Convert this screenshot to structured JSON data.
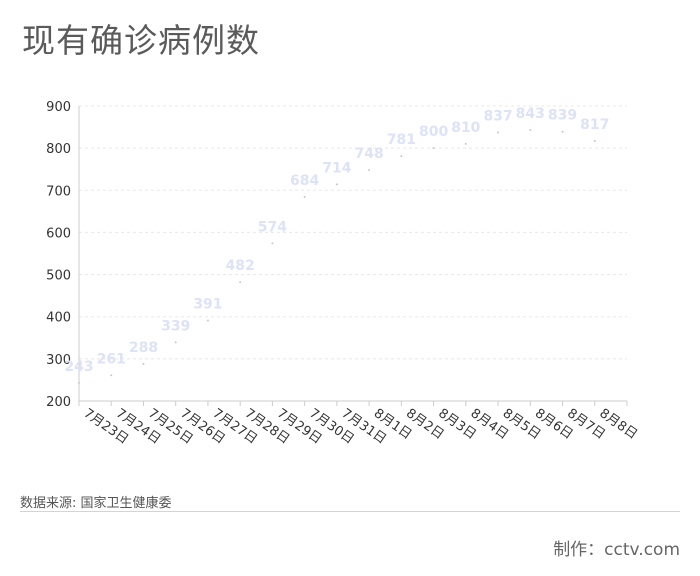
{
  "title": "现有确诊病例数",
  "source_text": "数据来源: 国家卫生健康委",
  "credit_text": "制作：cctv.com",
  "chart_data": {
    "type": "line",
    "categories": [
      "7月23日",
      "7月24日",
      "7月25日",
      "7月26日",
      "7月27日",
      "7月28日",
      "7月29日",
      "7月30日",
      "7月31日",
      "8月1日",
      "8月2日",
      "8月3日",
      "8月4日",
      "8月5日",
      "8月6日",
      "8月7日",
      "8月8日"
    ],
    "values": [
      243,
      261,
      288,
      339,
      391,
      482,
      574,
      684,
      714,
      748,
      781,
      800,
      810,
      837,
      843,
      839,
      817
    ],
    "ylim": [
      200,
      900
    ],
    "yticks": [
      200,
      300,
      400,
      500,
      600,
      700,
      800,
      900
    ],
    "grid": true,
    "label_color": "#dde3f6",
    "point_color": "#c8c8c8",
    "grid_color": "#e8e8e8",
    "axis_color": "#cccccc"
  }
}
